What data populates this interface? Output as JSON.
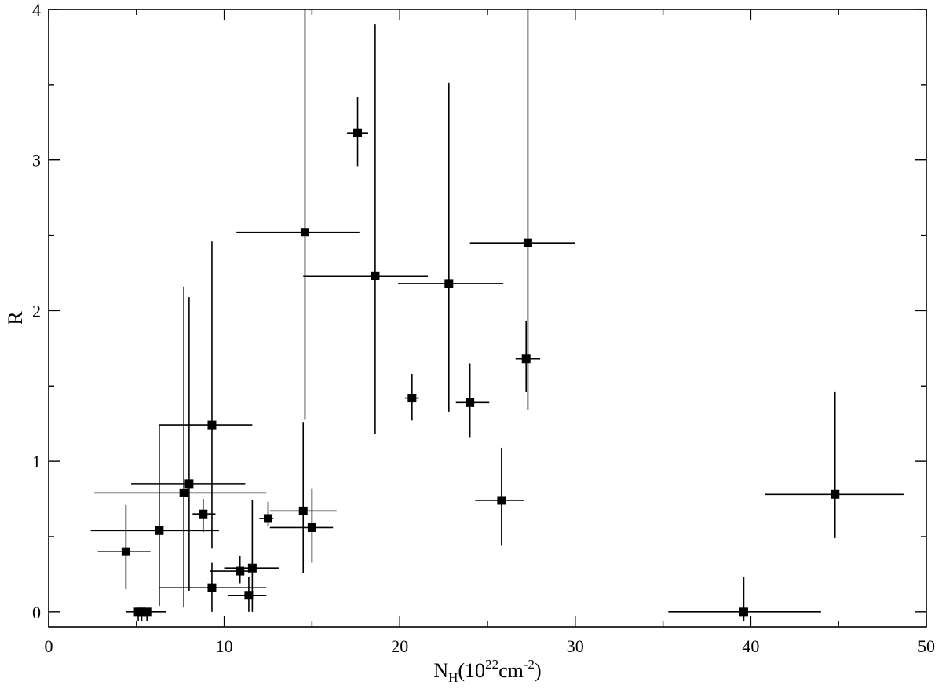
{
  "chart_data": {
    "type": "scatter",
    "title": "",
    "xlabel": {
      "base": "N",
      "sub": "H",
      "open": "(10",
      "sup1": "22",
      "unit": "cm",
      "sup2": "-2",
      "close": ")"
    },
    "ylabel": "R",
    "xlim": [
      0,
      50
    ],
    "ylim": [
      -0.1,
      4
    ],
    "x_ticks": [
      0,
      10,
      20,
      30,
      40,
      50
    ],
    "y_ticks": [
      0,
      1,
      2,
      3,
      4
    ],
    "x_minor_step": 5,
    "y_minor_step": 0.5,
    "grid": false,
    "points": [
      {
        "x": 4.4,
        "y": 0.4,
        "x_lo": 2.8,
        "x_hi": 5.8,
        "y_lo": 0.15,
        "y_hi": 0.71
      },
      {
        "x": 5.1,
        "y": 0.0,
        "x_lo": 4.4,
        "x_hi": 5.8,
        "y_lo": -0.06,
        "y_hi": 0.0
      },
      {
        "x": 5.3,
        "y": 0.0,
        "x_lo": 4.9,
        "x_hi": 5.8,
        "y_lo": -0.06,
        "y_hi": 0.0
      },
      {
        "x": 5.6,
        "y": 0.0,
        "x_lo": 4.9,
        "x_hi": 6.7,
        "y_lo": -0.06,
        "y_hi": 0.0
      },
      {
        "x": 6.3,
        "y": 0.54,
        "x_lo": 2.4,
        "x_hi": 9.7,
        "y_lo": 0.04,
        "y_hi": 1.24
      },
      {
        "x": 7.7,
        "y": 0.79,
        "x_lo": 2.6,
        "x_hi": 12.4,
        "y_lo": 0.03,
        "y_hi": 2.16
      },
      {
        "x": 8.0,
        "y": 0.85,
        "x_lo": 4.7,
        "x_hi": 11.2,
        "y_lo": 0.14,
        "y_hi": 2.09
      },
      {
        "x": 8.8,
        "y": 0.65,
        "x_lo": 8.2,
        "x_hi": 9.5,
        "y_lo": 0.53,
        "y_hi": 0.75
      },
      {
        "x": 9.3,
        "y": 1.24,
        "x_lo": 6.3,
        "x_hi": 11.6,
        "y_lo": 0.42,
        "y_hi": 2.46
      },
      {
        "x": 9.3,
        "y": 0.16,
        "x_lo": 6.3,
        "x_hi": 12.4,
        "y_lo": 0.0,
        "y_hi": 0.33
      },
      {
        "x": 10.9,
        "y": 0.27,
        "x_lo": 9.2,
        "x_hi": 11.4,
        "y_lo": 0.19,
        "y_hi": 0.37
      },
      {
        "x": 11.4,
        "y": 0.11,
        "x_lo": 10.2,
        "x_hi": 12.4,
        "y_lo": 0.0,
        "y_hi": 0.23
      },
      {
        "x": 11.6,
        "y": 0.29,
        "x_lo": 10.0,
        "x_hi": 13.1,
        "y_lo": 0.0,
        "y_hi": 0.74
      },
      {
        "x": 12.5,
        "y": 0.62,
        "x_lo": 12.0,
        "x_hi": 12.8,
        "y_lo": 0.57,
        "y_hi": 0.73
      },
      {
        "x": 14.5,
        "y": 0.67,
        "x_lo": 12.6,
        "x_hi": 16.4,
        "y_lo": 0.26,
        "y_hi": 1.26
      },
      {
        "x": 15.0,
        "y": 0.56,
        "x_lo": 12.6,
        "x_hi": 16.2,
        "y_lo": 0.33,
        "y_hi": 0.82
      },
      {
        "x": 14.6,
        "y": 2.52,
        "x_lo": 10.7,
        "x_hi": 17.7,
        "y_lo": 1.28,
        "y_hi": 4.0
      },
      {
        "x": 17.6,
        "y": 3.18,
        "x_lo": 17.0,
        "x_hi": 18.2,
        "y_lo": 2.96,
        "y_hi": 3.42
      },
      {
        "x": 18.6,
        "y": 2.23,
        "x_lo": 14.5,
        "x_hi": 21.6,
        "y_lo": 1.18,
        "y_hi": 3.9
      },
      {
        "x": 20.7,
        "y": 1.42,
        "x_lo": 20.3,
        "x_hi": 21.1,
        "y_lo": 1.27,
        "y_hi": 1.58
      },
      {
        "x": 22.8,
        "y": 2.18,
        "x_lo": 19.9,
        "x_hi": 25.9,
        "y_lo": 1.33,
        "y_hi": 3.51
      },
      {
        "x": 24.0,
        "y": 1.39,
        "x_lo": 23.2,
        "x_hi": 25.1,
        "y_lo": 1.16,
        "y_hi": 1.65
      },
      {
        "x": 25.8,
        "y": 0.74,
        "x_lo": 24.3,
        "x_hi": 27.1,
        "y_lo": 0.44,
        "y_hi": 1.09
      },
      {
        "x": 27.2,
        "y": 1.68,
        "x_lo": 26.6,
        "x_hi": 28.0,
        "y_lo": 1.46,
        "y_hi": 1.93
      },
      {
        "x": 27.3,
        "y": 2.45,
        "x_lo": 24.0,
        "x_hi": 30.0,
        "y_lo": 1.34,
        "y_hi": 4.0
      },
      {
        "x": 39.6,
        "y": 0.0,
        "x_lo": 35.3,
        "x_hi": 44.0,
        "y_lo": -0.06,
        "y_hi": 0.23
      },
      {
        "x": 44.8,
        "y": 0.78,
        "x_lo": 40.8,
        "x_hi": 48.7,
        "y_lo": 0.49,
        "y_hi": 1.46
      }
    ]
  }
}
